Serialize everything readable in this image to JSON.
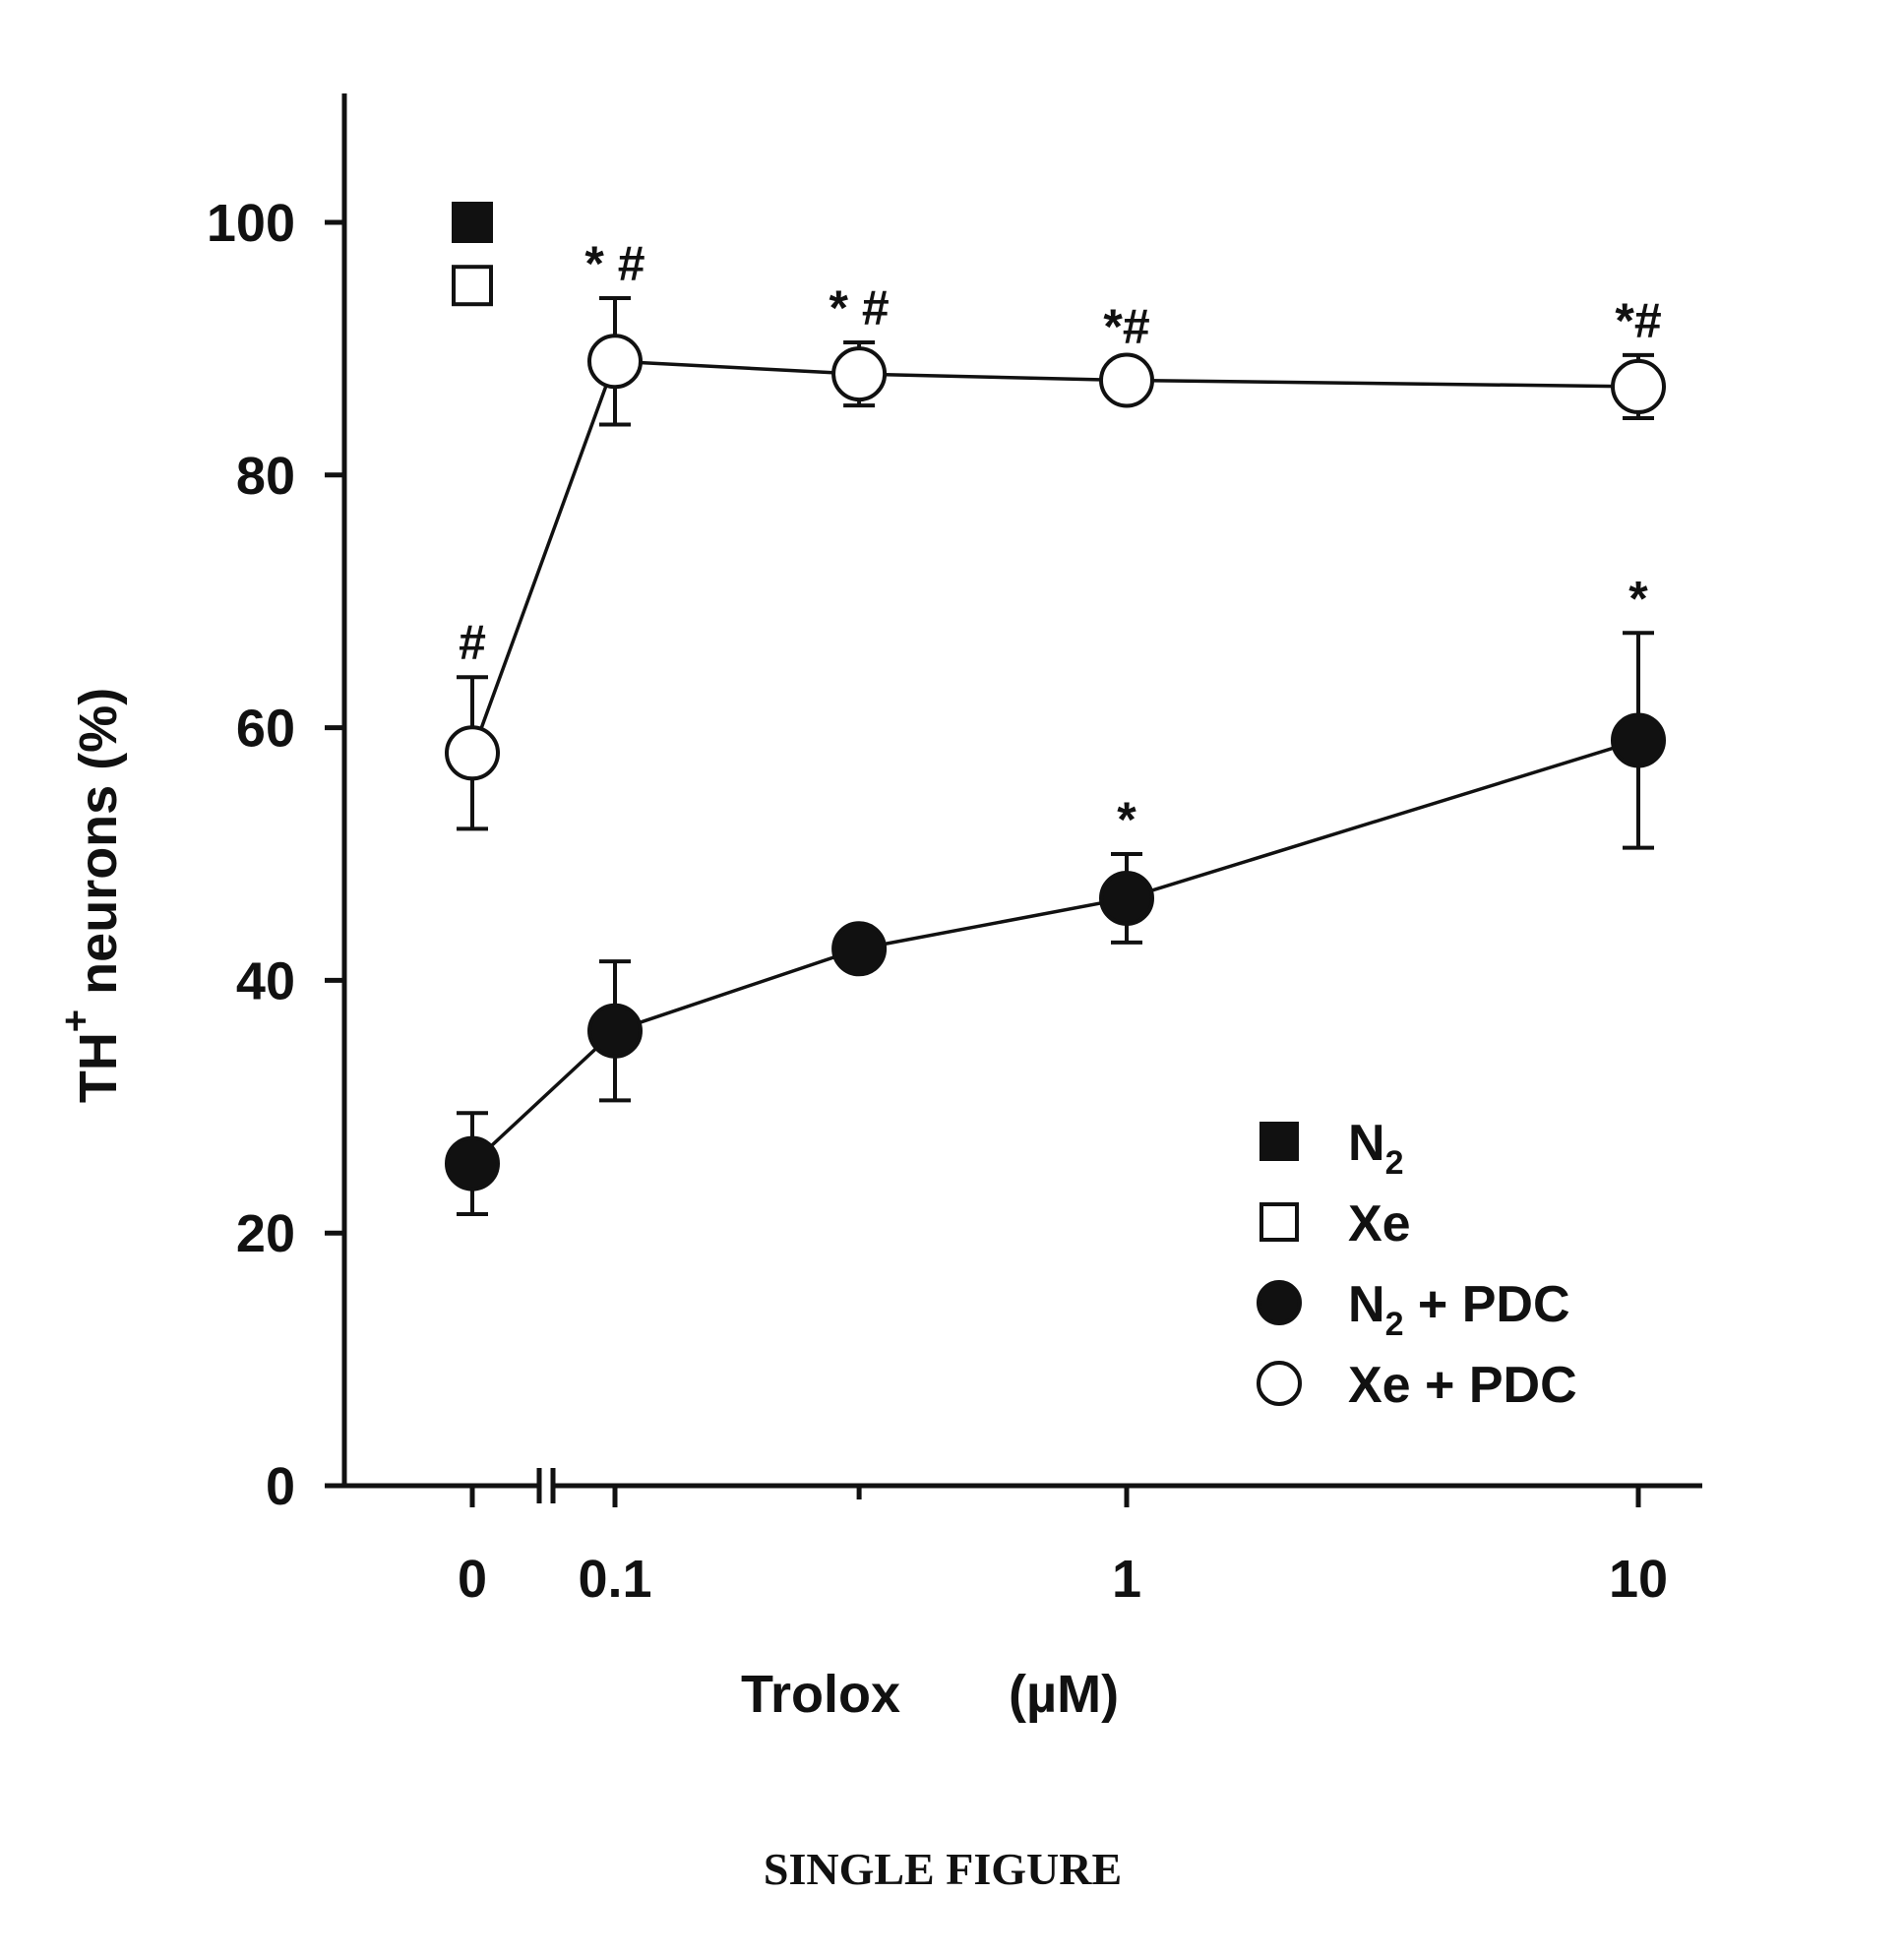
{
  "caption": "SINGLE FIGURE",
  "chart_data": {
    "type": "line",
    "xlabel": "Trolox",
    "xlabel_unit": "(µM)",
    "ylabel": "TH",
    "ylabel_superscript": "+",
    "ylabel_rest": " neurons (%)",
    "ylim": [
      0,
      110
    ],
    "yticks": [
      0,
      20,
      40,
      60,
      80,
      100
    ],
    "x_scale": "log with axis break (0 plotted before break)",
    "xticks": [
      {
        "value": 0,
        "label": "0"
      },
      {
        "value": 0.1,
        "label": "0.1"
      },
      {
        "value": 1,
        "label": "1"
      },
      {
        "value": 10,
        "label": "10"
      }
    ],
    "legend_position": "bottom-right",
    "legend": [
      {
        "marker": "filled-square",
        "label": "N",
        "sub": "2",
        "rest": ""
      },
      {
        "marker": "open-square",
        "label": "Xe",
        "sub": "",
        "rest": ""
      },
      {
        "marker": "filled-circle",
        "label": "N",
        "sub": "2",
        "rest": " + PDC"
      },
      {
        "marker": "open-circle",
        "label": "Xe",
        "sub": "",
        "rest": " + PDC"
      }
    ],
    "controls": [
      {
        "name": "N2",
        "marker": "filled-square",
        "x": 0,
        "y": 100
      },
      {
        "name": "Xe",
        "marker": "open-square",
        "x": 0,
        "y": 95
      }
    ],
    "series": [
      {
        "name": "Xe + PDC",
        "marker": "open-circle",
        "points": [
          {
            "x": 0,
            "y": 58,
            "err": 6,
            "sig": "#"
          },
          {
            "x": 0.1,
            "y": 89,
            "err": 5,
            "sig": "* #"
          },
          {
            "x": 0.3,
            "y": 88,
            "err": 2.5,
            "sig": "* #"
          },
          {
            "x": 1,
            "y": 87.5,
            "err": 1.5,
            "sig": "*#"
          },
          {
            "x": 10,
            "y": 87,
            "err": 2.5,
            "sig": "*#"
          }
        ]
      },
      {
        "name": "N2 + PDC",
        "marker": "filled-circle",
        "points": [
          {
            "x": 0,
            "y": 25.5,
            "err": 4,
            "sig": ""
          },
          {
            "x": 0.1,
            "y": 36,
            "err": 5.5,
            "sig": ""
          },
          {
            "x": 0.3,
            "y": 42.5,
            "err": 1.5,
            "sig": ""
          },
          {
            "x": 1,
            "y": 46.5,
            "err": 3.5,
            "sig": "*"
          },
          {
            "x": 10,
            "y": 59,
            "err": 8.5,
            "sig": "*"
          }
        ]
      }
    ]
  }
}
